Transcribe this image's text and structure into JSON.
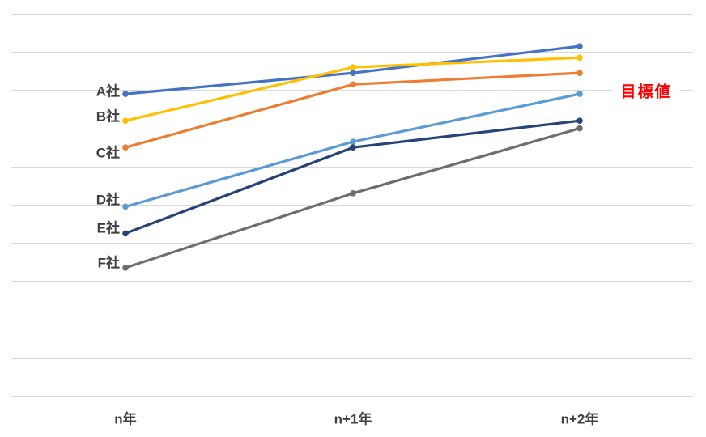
{
  "chart_data": {
    "type": "line",
    "title": "",
    "categories": [
      "n年",
      "n+1年",
      "n+2年"
    ],
    "series": [
      {
        "id": "a",
        "name": "A社",
        "color": "#4472C4",
        "values": [
          79,
          84.5,
          91.5
        ]
      },
      {
        "id": "b",
        "name": "B社",
        "color": "#FFC000",
        "values": [
          72,
          86,
          88.5
        ]
      },
      {
        "id": "c",
        "name": "C社",
        "color": "#ED7D31",
        "values": [
          65,
          81.5,
          84.5
        ]
      },
      {
        "id": "d",
        "name": "D社",
        "color": "#5B9BD5",
        "values": [
          49.5,
          66.5,
          79
        ]
      },
      {
        "id": "e",
        "name": "E社",
        "color": "#264478",
        "values": [
          42.5,
          65,
          72
        ]
      },
      {
        "id": "f",
        "name": "F社",
        "color": "#6E6E6E",
        "values": [
          33.5,
          53,
          70
        ]
      }
    ],
    "xlabel": "",
    "ylabel": "",
    "ylim": [
      0,
      100
    ],
    "gridline_step": 10,
    "grid": true,
    "legend_position": "direct-labels-left-of-first-point",
    "annotations": [
      {
        "text": "目標値",
        "value": 80,
        "color": "#FF0000",
        "position": "right"
      }
    ],
    "style": {
      "background": "#FFFFFF",
      "gridline_color": "#D9D9D9",
      "label_color": "#404040"
    }
  }
}
